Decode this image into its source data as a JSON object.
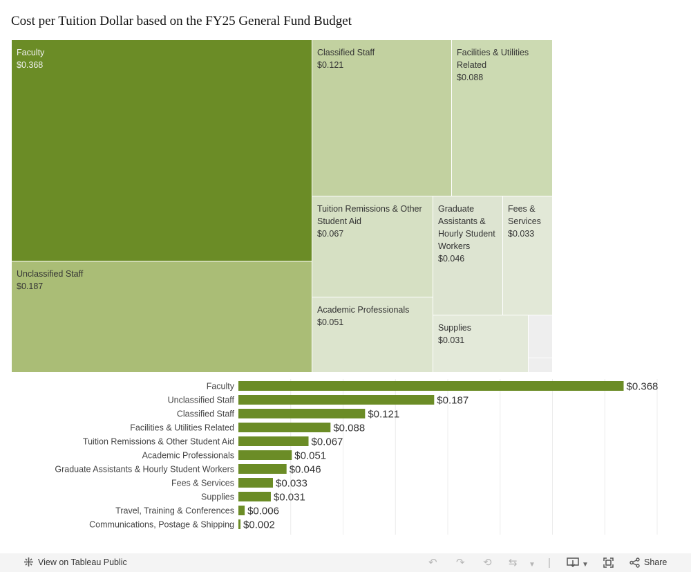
{
  "title": "Cost per Tuition Dollar based on the FY25 General Fund Budget",
  "colors": {
    "faculty": "#6b8c26",
    "unclassified": "#aabd76",
    "classified": "#c2d1a0",
    "facilities": "#ccdab2",
    "tuition": "#d6e0c3",
    "graduate": "#dde4d1",
    "fees": "#e2e8d7",
    "academic": "#dce4cd",
    "supplies": "#e3e9d9",
    "other": "#eeeeee",
    "bar": "#6b8c26"
  },
  "treemap": {
    "faculty": {
      "label": "Faculty",
      "value": "$0.368"
    },
    "unclassified": {
      "label": "Unclassified Staff",
      "value": "$0.187"
    },
    "classified": {
      "label": "Classified Staff",
      "value": "$0.121"
    },
    "facilities": {
      "label": "Facilities & Utilities Related",
      "value": "$0.088"
    },
    "tuition": {
      "label": "Tuition Remissions & Other Student Aid",
      "value": "$0.067"
    },
    "graduate": {
      "label": "Graduate Assistants & Hourly Student Workers",
      "value": "$0.046"
    },
    "fees": {
      "label": "Fees & Services",
      "value": "$0.033"
    },
    "academic": {
      "label": "Academic Professionals",
      "value": "$0.051"
    },
    "supplies": {
      "label": "Supplies",
      "value": "$0.031"
    }
  },
  "chart_data": {
    "type": "bar",
    "orientation": "horizontal",
    "categories": [
      "Faculty",
      "Unclassified Staff",
      "Classified Staff",
      "Facilities & Utilities Related",
      "Tuition Remissions & Other Student Aid",
      "Academic Professionals",
      "Graduate Assistants & Hourly Student Workers",
      "Fees & Services",
      "Supplies",
      "Travel, Training & Conferences",
      "Communications, Postage & Shipping"
    ],
    "values": [
      0.368,
      0.187,
      0.121,
      0.088,
      0.067,
      0.051,
      0.046,
      0.033,
      0.031,
      0.006,
      0.002
    ],
    "labels": [
      "$0.368",
      "$0.187",
      "$0.121",
      "$0.088",
      "$0.067",
      "$0.051",
      "$0.046",
      "$0.033",
      "$0.031",
      "$0.006",
      "$0.002"
    ],
    "xlim": [
      0,
      0.4
    ],
    "grid_step": 0.05,
    "grid": true
  },
  "toolbar": {
    "view_label": "View on Tableau Public",
    "share_label": "Share"
  }
}
